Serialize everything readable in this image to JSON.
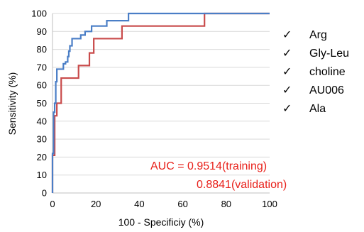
{
  "chart_data": {
    "type": "line",
    "xlabel": "100 - Specificiy (%)",
    "ylabel": "Sensitivity (%)",
    "xlim": [
      0,
      100
    ],
    "ylim": [
      0,
      100
    ],
    "x_ticks": [
      "0",
      "20",
      "40",
      "60",
      "80",
      "100"
    ],
    "y_ticks": [
      "0",
      "10",
      "20",
      "30",
      "40",
      "50",
      "60",
      "70",
      "80",
      "90",
      "100"
    ],
    "grid": "horizontal",
    "legend_marker": "✓",
    "legend_position": "right",
    "legend_items": [
      "Arg",
      "Gly-Leu",
      "choline",
      "AU006",
      "Ala"
    ],
    "annotations": {
      "line1": "AUC = 0.9514(training)",
      "line2": "0.8841(validation)",
      "color": "#e8201a"
    },
    "series": [
      {
        "color": "#4a7ec6",
        "x": [
          0,
          0,
          0.5,
          0.5,
          1,
          1,
          1.5,
          1.5,
          2,
          2,
          5,
          5,
          6,
          6,
          7,
          7,
          7.5,
          7.5,
          8,
          8,
          9,
          9,
          13,
          13,
          15,
          15,
          18,
          18,
          25,
          25,
          35,
          35,
          70,
          100
        ],
        "y": [
          0,
          22,
          22,
          45,
          45,
          50,
          50,
          62,
          62,
          69,
          69,
          72,
          72,
          73,
          73,
          76,
          76,
          79,
          79,
          82,
          82,
          86,
          86,
          88,
          88,
          90,
          90,
          93,
          93,
          96,
          96,
          100,
          100,
          100
        ]
      },
      {
        "color": "#c94b4b",
        "x": [
          0,
          0,
          1,
          1,
          2,
          2,
          4,
          4,
          12,
          12,
          17,
          17,
          19,
          19,
          32,
          32,
          70,
          70,
          100
        ],
        "y": [
          0,
          21,
          21,
          43,
          43,
          50,
          50,
          64,
          64,
          71,
          71,
          78,
          78,
          86,
          86,
          93,
          93,
          100,
          100
        ]
      }
    ]
  }
}
